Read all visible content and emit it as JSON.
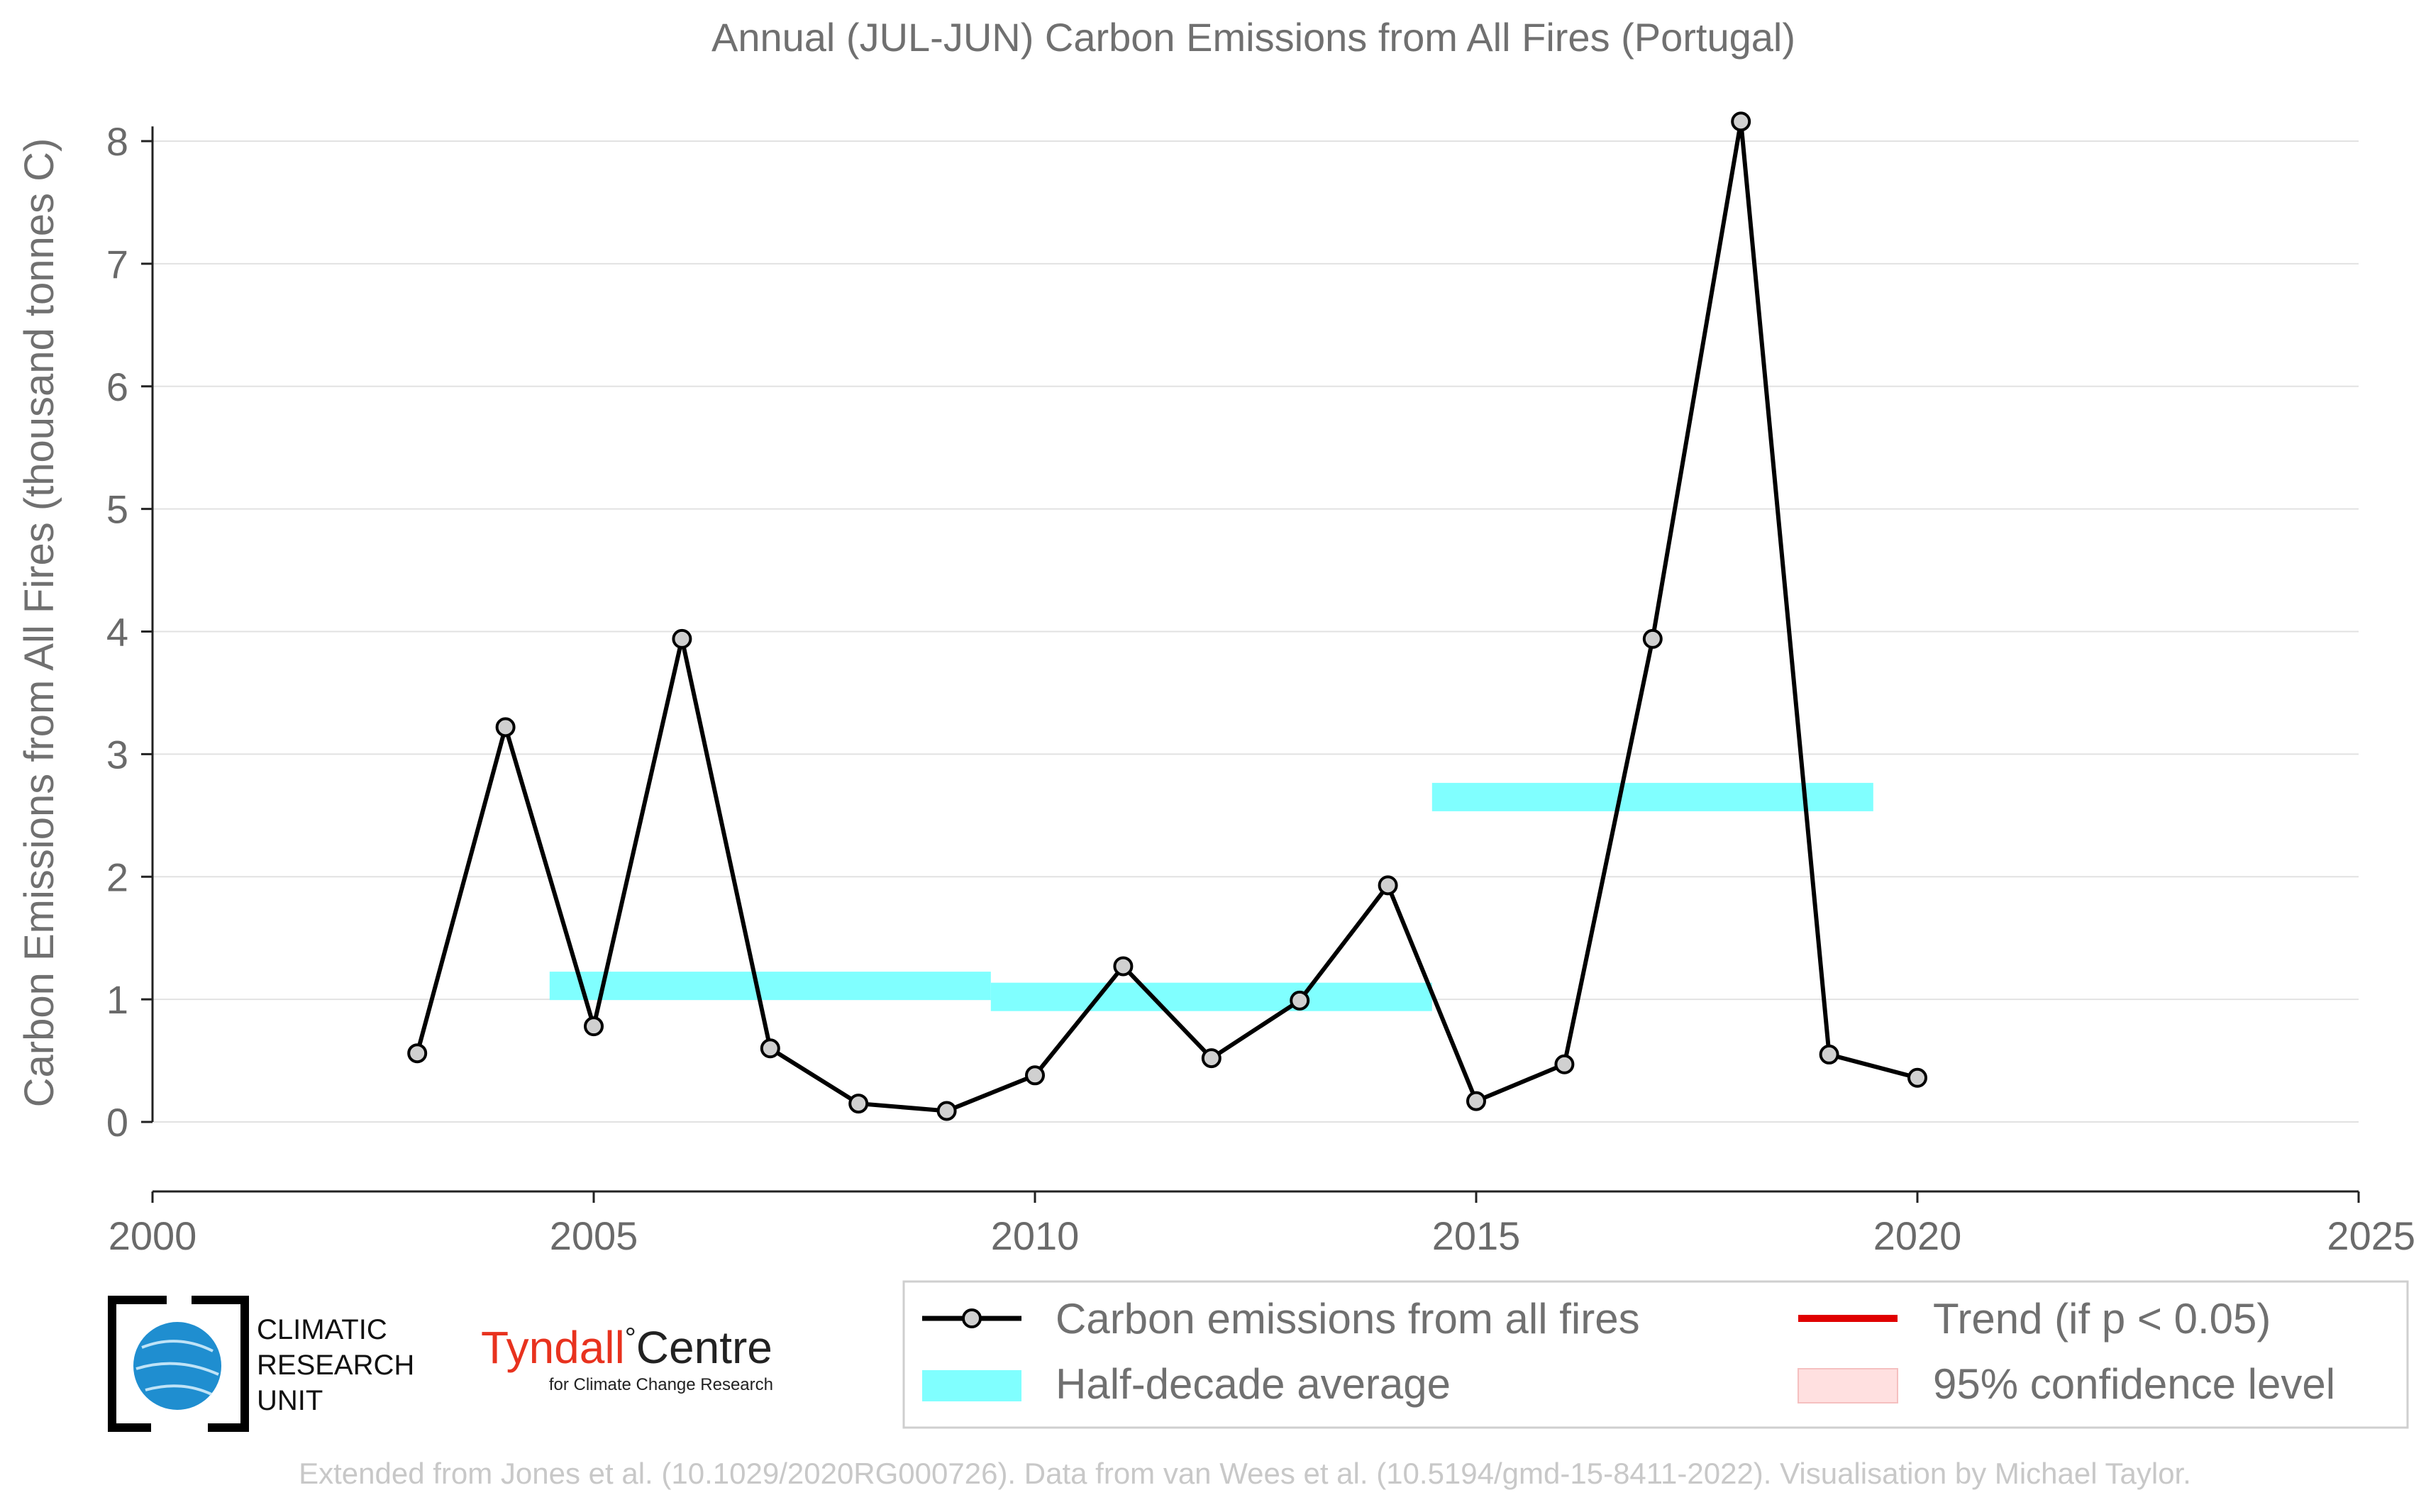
{
  "chart_data": {
    "type": "line",
    "title": "Annual (JUL-JUN) Carbon Emissions from All Fires (Portugal)",
    "ylabel": "Carbon Emissions from All Fires (thousand tonnes C)",
    "xlabel": "",
    "xlim": [
      2000,
      2025
    ],
    "ylim": [
      0,
      8.4
    ],
    "x_ticks": [
      "2000",
      "2005",
      "2010",
      "2015",
      "2020",
      "2025"
    ],
    "y_ticks": [
      "0",
      "1",
      "2",
      "3",
      "4",
      "5",
      "6",
      "7",
      "8"
    ],
    "grid": "horizontal",
    "series": [
      {
        "name": "Carbon emissions from all fires",
        "color": "#000000",
        "x": [
          2003,
          2004,
          2005,
          2006,
          2007,
          2008,
          2009,
          2010,
          2011,
          2012,
          2013,
          2014,
          2015,
          2016,
          2017,
          2018,
          2019,
          2020
        ],
        "values": [
          0.56,
          3.22,
          0.78,
          3.94,
          0.6,
          0.15,
          0.09,
          0.38,
          1.27,
          0.52,
          0.99,
          1.93,
          0.17,
          0.47,
          3.94,
          8.16,
          0.55,
          0.36
        ]
      }
    ],
    "half_decade_average": {
      "name": "Half-decade average",
      "color": "#80ffff",
      "segments": [
        {
          "x_start": 2004.5,
          "x_end": 2009.5,
          "value": 1.11
        },
        {
          "x_start": 2009.5,
          "x_end": 2014.5,
          "value": 1.02
        },
        {
          "x_start": 2014.5,
          "x_end": 2019.5,
          "value": 2.65
        }
      ]
    },
    "legend": {
      "position": "bottom-right",
      "entries": [
        {
          "label": "Carbon emissions from all fires",
          "kind": "line-marker",
          "color": "#000000"
        },
        {
          "label": "Trend (if p < 0.05)",
          "kind": "line",
          "color": "#e00000"
        },
        {
          "label": "Half-decade average",
          "kind": "band",
          "color": "#80ffff"
        },
        {
          "label": "95% confidence level",
          "kind": "patch",
          "color": "#ffe0e0"
        }
      ]
    }
  },
  "logos": {
    "cru_lines": [
      "CLIMATIC",
      "RESEARCH",
      "UNIT"
    ],
    "tyndall_name": "Tyndall",
    "tyndall_degree": "°",
    "tyndall_centre": "Centre",
    "tyndall_sub": "for Climate Change Research"
  },
  "footer": "Extended from Jones et al. (10.1029/2020RG000726). Data from van Wees et al. (10.5194/gmd-15-8411-2022). Visualisation by Michael Taylor.",
  "colors": {
    "axis": "#222222",
    "grid": "#e2e2e2",
    "marker_fill": "#d0d0d0",
    "tyndall_red": "#e8321e",
    "cru_blue": "#1f8ed0"
  }
}
